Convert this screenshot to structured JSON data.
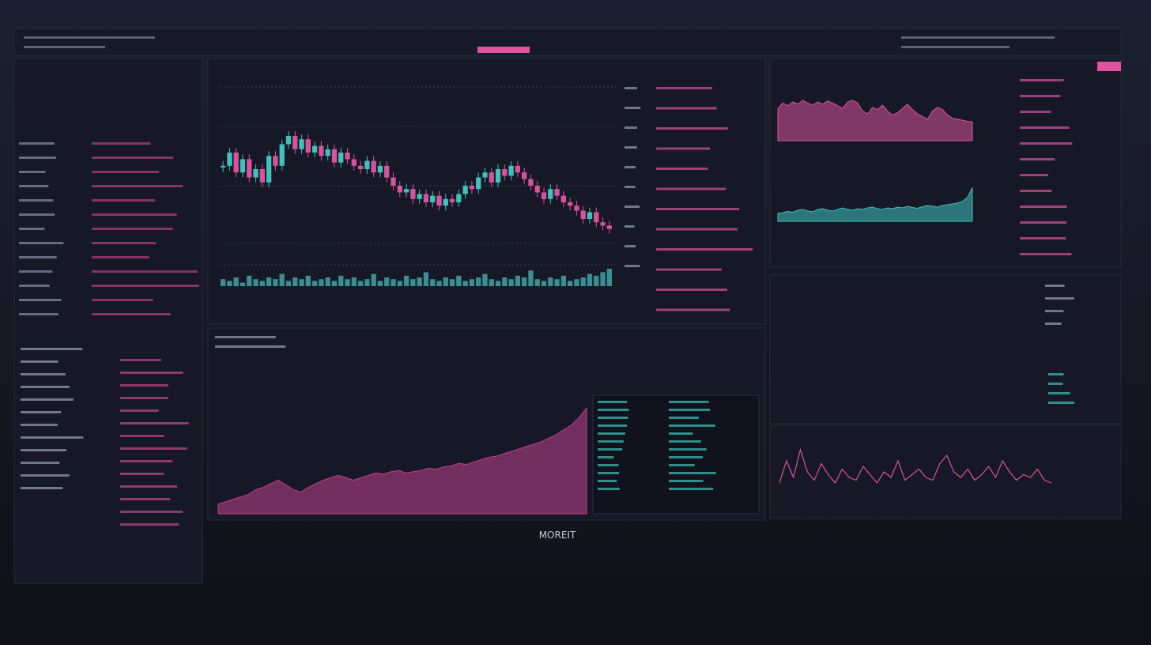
{
  "footer": {
    "label": "MOREIT"
  },
  "main_chart": {
    "type": "candlestick",
    "ylim": [
      0,
      100
    ],
    "values": [
      62,
      70,
      58,
      66,
      55,
      60,
      52,
      68,
      62,
      75,
      80,
      72,
      78,
      70,
      74,
      68,
      72,
      64,
      70,
      66,
      62,
      60,
      65,
      58,
      62,
      55,
      50,
      46,
      48,
      42,
      45,
      40,
      44,
      38,
      42,
      40,
      45,
      50,
      48,
      55,
      58,
      52,
      60,
      56,
      62,
      58,
      54,
      50,
      46,
      42,
      48,
      44,
      40,
      38,
      35,
      30,
      34,
      28,
      26,
      24
    ],
    "up_color": "#3fc1bd",
    "down_color": "#d9529f"
  },
  "volume_chart": {
    "type": "bar",
    "ylim": [
      0,
      10
    ],
    "color": "#3a8f95",
    "values": [
      4,
      3,
      5,
      2,
      6,
      4,
      3,
      5,
      4,
      7,
      3,
      5,
      4,
      6,
      3,
      4,
      5,
      3,
      6,
      4,
      5,
      3,
      4,
      7,
      3,
      5,
      4,
      3,
      6,
      4,
      5,
      8,
      4,
      3,
      5,
      4,
      6,
      3,
      4,
      5,
      7,
      4,
      3,
      5,
      4,
      6,
      5,
      9,
      4,
      3,
      5,
      4,
      6,
      3,
      4,
      5,
      7,
      6,
      8,
      10
    ]
  },
  "depth_chart": {
    "type": "area",
    "ylim": [
      0,
      100
    ],
    "color": "#c0408f",
    "values": [
      8,
      10,
      12,
      14,
      16,
      20,
      22,
      25,
      28,
      24,
      20,
      18,
      22,
      25,
      28,
      30,
      32,
      30,
      28,
      30,
      32,
      34,
      33,
      35,
      36,
      34,
      35,
      36,
      38,
      37,
      39,
      40,
      42,
      41,
      43,
      45,
      47,
      48,
      50,
      52,
      54,
      56,
      58,
      60,
      63,
      66,
      70,
      74,
      80,
      88
    ]
  },
  "pink_area_chart": {
    "type": "area",
    "ylim": [
      0,
      100
    ],
    "color": "#d9529f",
    "values": [
      60,
      70,
      65,
      72,
      68,
      75,
      70,
      66,
      72,
      68,
      74,
      70,
      65,
      60,
      72,
      75,
      70,
      55,
      50,
      62,
      58,
      66,
      55,
      48,
      52,
      60,
      68,
      58,
      50,
      45,
      40,
      55,
      62,
      58,
      48,
      42,
      40,
      38,
      36,
      35
    ]
  },
  "teal_area_chart": {
    "type": "area",
    "ylim": [
      0,
      100
    ],
    "color": "#3fc1bd",
    "values": [
      20,
      22,
      25,
      23,
      28,
      30,
      26,
      24,
      30,
      32,
      28,
      26,
      30,
      34,
      30,
      28,
      32,
      30,
      34,
      36,
      32,
      30,
      34,
      32,
      36,
      34,
      38,
      35,
      33,
      37,
      40,
      38,
      36,
      40,
      42,
      44,
      46,
      50,
      60,
      85
    ]
  },
  "spike_chart": {
    "type": "line",
    "ylim": [
      0,
      100
    ],
    "color": "#d9529f",
    "values": [
      20,
      60,
      30,
      80,
      40,
      25,
      55,
      35,
      20,
      45,
      30,
      25,
      50,
      35,
      20,
      40,
      30,
      60,
      25,
      35,
      45,
      30,
      25,
      55,
      70,
      40,
      30,
      45,
      25,
      35,
      50,
      30,
      60,
      40,
      25,
      35,
      30,
      45,
      25,
      20
    ]
  }
}
